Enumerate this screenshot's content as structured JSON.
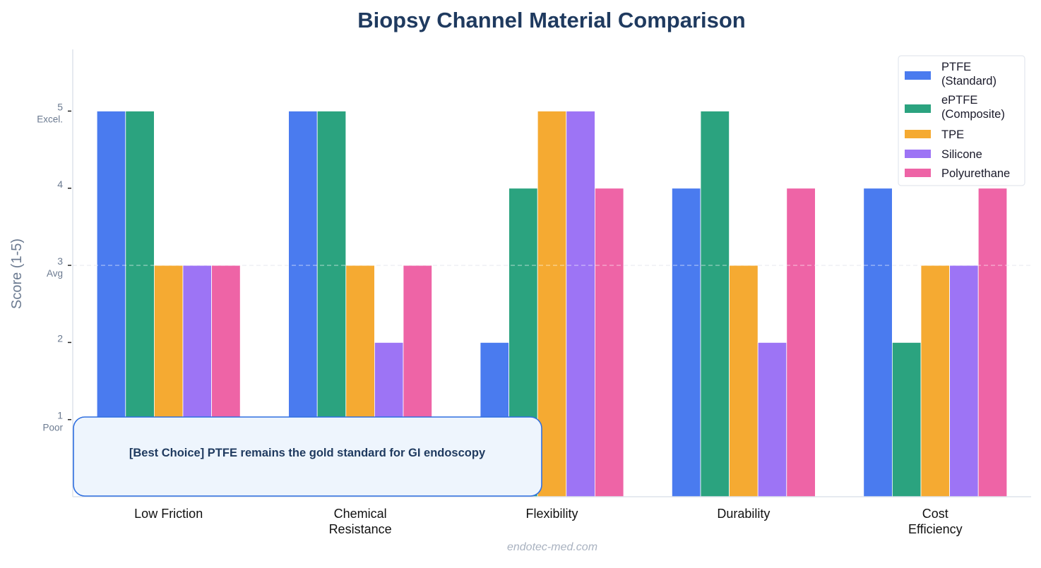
{
  "chart_data": {
    "type": "bar",
    "title": "Biopsy Channel Material Comparison",
    "xlabel": "",
    "ylabel": "Score (1-5)",
    "ylim": [
      0,
      5.8
    ],
    "grid": false,
    "reference_line": {
      "y": 3,
      "style": "dashed"
    },
    "yticks": [
      {
        "value": 1,
        "label": "1",
        "sublabel": "Poor"
      },
      {
        "value": 2,
        "label": "2",
        "sublabel": ""
      },
      {
        "value": 3,
        "label": "3",
        "sublabel": "Avg"
      },
      {
        "value": 4,
        "label": "4",
        "sublabel": ""
      },
      {
        "value": 5,
        "label": "5",
        "sublabel": "Excel."
      }
    ],
    "categories": [
      [
        "Low Friction"
      ],
      [
        "Chemical",
        "Resistance"
      ],
      [
        "Flexibility"
      ],
      [
        "Durability"
      ],
      [
        "Cost",
        "Efficiency"
      ]
    ],
    "series": [
      {
        "name": [
          "PTFE",
          "(Standard)"
        ],
        "color": "#4a7bef",
        "values": [
          5,
          5,
          2,
          4,
          4
        ]
      },
      {
        "name": [
          "ePTFE",
          "(Composite)"
        ],
        "color": "#2ba37f",
        "values": [
          5,
          5,
          4,
          5,
          2
        ]
      },
      {
        "name": [
          "TPE"
        ],
        "color": "#f5aa32",
        "values": [
          3,
          3,
          5,
          3,
          3
        ]
      },
      {
        "name": [
          "Silicone"
        ],
        "color": "#9d74f5",
        "values": [
          3,
          2,
          5,
          2,
          3
        ]
      },
      {
        "name": [
          "Polyurethane"
        ],
        "color": "#ee64a6",
        "values": [
          3,
          3,
          4,
          4,
          4
        ]
      }
    ],
    "legend_position": "top-right",
    "annotation": "[Best Choice]  PTFE remains the gold standard for GI endoscopy",
    "footer": "endotec-med.com"
  }
}
